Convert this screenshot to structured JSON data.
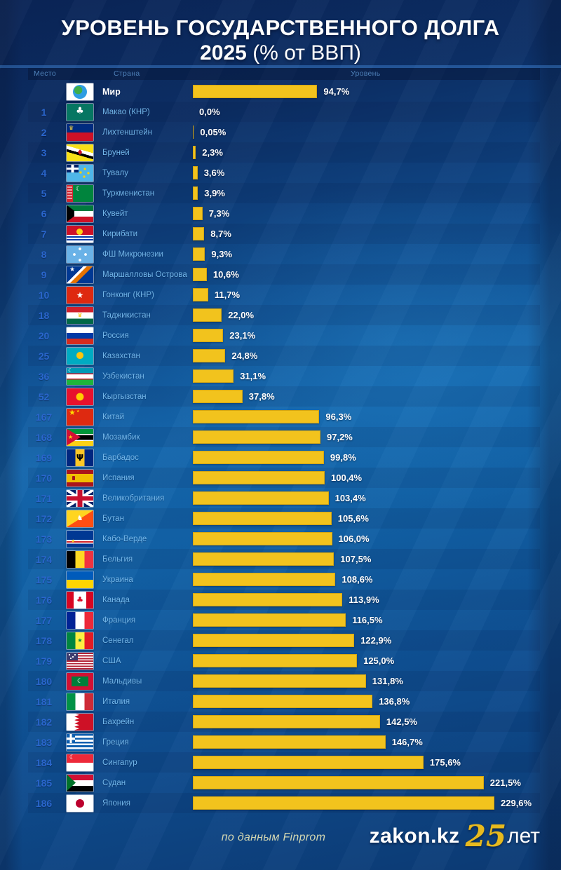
{
  "title": {
    "line1": "УРОВЕНЬ ГОСУДАРСТВЕННОГО ДОЛГА",
    "line2_bold": "2025",
    "line2_rest": " (% от ВВП)"
  },
  "table": {
    "headers": {
      "rank": "Место",
      "country": "Страна",
      "level": "Уровень"
    }
  },
  "footer": {
    "credit": "по данным Finprom",
    "logo": {
      "site": "zakon.kz",
      "years": "25",
      "years_suffix": "лет"
    }
  },
  "colors": {
    "bar": "#f2c31d",
    "rank_text": "#2a66cc",
    "country_text": "#72b6e9",
    "background_top": "#0a2456",
    "background_mid": "#1466ac"
  },
  "chart_data": {
    "type": "bar",
    "orientation": "horizontal",
    "title": "УРОВЕНЬ ГОСУДАРСТВЕННОГО ДОЛГА 2025 (% от ВВП)",
    "unit": "% от ВВП",
    "xlim": [
      0,
      230
    ],
    "grid": false,
    "legend": false,
    "source": "Finprom",
    "bar_color": "#f2c31d",
    "rows": [
      {
        "rank": "",
        "country": "Мир",
        "flag": "world",
        "value": 94.7,
        "label": "94,7%"
      },
      {
        "rank": "1",
        "country": "Макао (КНР)",
        "flag": "macau",
        "value": 0.0,
        "label": "0,0%"
      },
      {
        "rank": "2",
        "country": "Лихтенштейн",
        "flag": "liechtenstein",
        "value": 0.05,
        "label": "0,05%"
      },
      {
        "rank": "3",
        "country": "Бруней",
        "flag": "brunei",
        "value": 2.3,
        "label": "2,3%"
      },
      {
        "rank": "4",
        "country": "Тувалу",
        "flag": "tuvalu",
        "value": 3.6,
        "label": "3,6%"
      },
      {
        "rank": "5",
        "country": "Туркменистан",
        "flag": "turkmenistan",
        "value": 3.9,
        "label": "3,9%"
      },
      {
        "rank": "6",
        "country": "Кувейт",
        "flag": "kuwait",
        "value": 7.3,
        "label": "7,3%"
      },
      {
        "rank": "7",
        "country": "Кирибати",
        "flag": "kiribati",
        "value": 8.7,
        "label": "8,7%"
      },
      {
        "rank": "8",
        "country": "ФШ Микронезии",
        "flag": "micronesia",
        "value": 9.3,
        "label": "9,3%"
      },
      {
        "rank": "9",
        "country": "Маршалловы Острова",
        "flag": "marshall",
        "value": 10.6,
        "label": "10,6%"
      },
      {
        "rank": "10",
        "country": "Гонконг (КНР)",
        "flag": "hongkong",
        "value": 11.7,
        "label": "11,7%"
      },
      {
        "rank": "18",
        "country": "Таджикистан",
        "flag": "tajikistan",
        "value": 22.0,
        "label": "22,0%"
      },
      {
        "rank": "20",
        "country": "Россия",
        "flag": "russia",
        "value": 23.1,
        "label": "23,1%"
      },
      {
        "rank": "25",
        "country": "Казахстан",
        "flag": "kazakhstan",
        "value": 24.8,
        "label": "24,8%"
      },
      {
        "rank": "36",
        "country": "Узбекистан",
        "flag": "uzbekistan",
        "value": 31.1,
        "label": "31,1%"
      },
      {
        "rank": "52",
        "country": "Кыргызстан",
        "flag": "kyrgyzstan",
        "value": 37.8,
        "label": "37,8%"
      },
      {
        "rank": "167",
        "country": "Китай",
        "flag": "china",
        "value": 96.3,
        "label": "96,3%"
      },
      {
        "rank": "168",
        "country": "Мозамбик",
        "flag": "mozambique",
        "value": 97.2,
        "label": "97,2%"
      },
      {
        "rank": "169",
        "country": "Барбадос",
        "flag": "barbados",
        "value": 99.8,
        "label": "99,8%"
      },
      {
        "rank": "170",
        "country": "Испания",
        "flag": "spain",
        "value": 100.4,
        "label": "100,4%"
      },
      {
        "rank": "171",
        "country": "Великобритания",
        "flag": "uk",
        "value": 103.4,
        "label": "103,4%"
      },
      {
        "rank": "172",
        "country": "Бутан",
        "flag": "bhutan",
        "value": 105.6,
        "label": "105,6%"
      },
      {
        "rank": "173",
        "country": "Кабо-Верде",
        "flag": "capeverde",
        "value": 106.0,
        "label": "106,0%"
      },
      {
        "rank": "174",
        "country": "Бельгия",
        "flag": "belgium",
        "value": 107.5,
        "label": "107,5%"
      },
      {
        "rank": "175",
        "country": "Украина",
        "flag": "ukraine",
        "value": 108.6,
        "label": "108,6%"
      },
      {
        "rank": "176",
        "country": "Канада",
        "flag": "canada",
        "value": 113.9,
        "label": "113,9%"
      },
      {
        "rank": "177",
        "country": "Франция",
        "flag": "france",
        "value": 116.5,
        "label": "116,5%"
      },
      {
        "rank": "178",
        "country": "Сенегал",
        "flag": "senegal",
        "value": 122.9,
        "label": "122,9%"
      },
      {
        "rank": "179",
        "country": "США",
        "flag": "usa",
        "value": 125.0,
        "label": "125,0%"
      },
      {
        "rank": "180",
        "country": "Мальдивы",
        "flag": "maldives",
        "value": 131.8,
        "label": "131,8%"
      },
      {
        "rank": "181",
        "country": "Италия",
        "flag": "italy",
        "value": 136.8,
        "label": "136,8%"
      },
      {
        "rank": "182",
        "country": "Бахрейн",
        "flag": "bahrain",
        "value": 142.5,
        "label": "142,5%"
      },
      {
        "rank": "183",
        "country": "Греция",
        "flag": "greece",
        "value": 146.7,
        "label": "146,7%"
      },
      {
        "rank": "184",
        "country": "Сингапур",
        "flag": "singapore",
        "value": 175.6,
        "label": "175,6%"
      },
      {
        "rank": "185",
        "country": "Судан",
        "flag": "sudan",
        "value": 221.5,
        "label": "221,5%"
      },
      {
        "rank": "186",
        "country": "Япония",
        "flag": "japan",
        "value": 229.6,
        "label": "229,6%"
      }
    ]
  }
}
